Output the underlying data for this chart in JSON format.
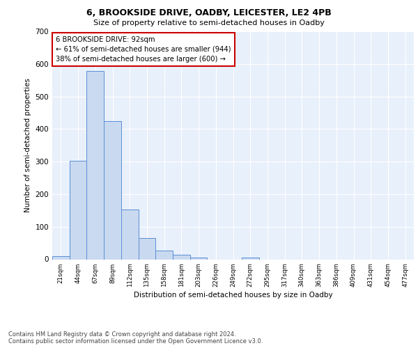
{
  "title1": "6, BROOKSIDE DRIVE, OADBY, LEICESTER, LE2 4PB",
  "title2": "Size of property relative to semi-detached houses in Oadby",
  "xlabel": "Distribution of semi-detached houses by size in Oadby",
  "ylabel": "Number of semi-detached properties",
  "bin_labels": [
    "21sqm",
    "44sqm",
    "67sqm",
    "89sqm",
    "112sqm",
    "135sqm",
    "158sqm",
    "181sqm",
    "203sqm",
    "226sqm",
    "249sqm",
    "272sqm",
    "295sqm",
    "317sqm",
    "340sqm",
    "363sqm",
    "386sqm",
    "409sqm",
    "431sqm",
    "454sqm",
    "477sqm"
  ],
  "bar_heights": [
    10,
    302,
    578,
    425,
    152,
    65,
    26,
    13,
    5,
    0,
    0,
    5,
    0,
    0,
    0,
    0,
    0,
    0,
    0,
    0,
    0
  ],
  "bar_color": "#c9d9f0",
  "bar_edge_color": "#5b8fd4",
  "annotation_box_text": "6 BROOKSIDE DRIVE: 92sqm\n← 61% of semi-detached houses are smaller (944)\n38% of semi-detached houses are larger (600) →",
  "annotation_box_color": "#ffffff",
  "annotation_box_edge_color": "#cc0000",
  "footnote": "Contains HM Land Registry data © Crown copyright and database right 2024.\nContains public sector information licensed under the Open Government Licence v3.0.",
  "ylim": [
    0,
    700
  ],
  "yticks": [
    0,
    100,
    200,
    300,
    400,
    500,
    600,
    700
  ],
  "bg_color": "#e8f0fb",
  "grid_color": "#ffffff"
}
